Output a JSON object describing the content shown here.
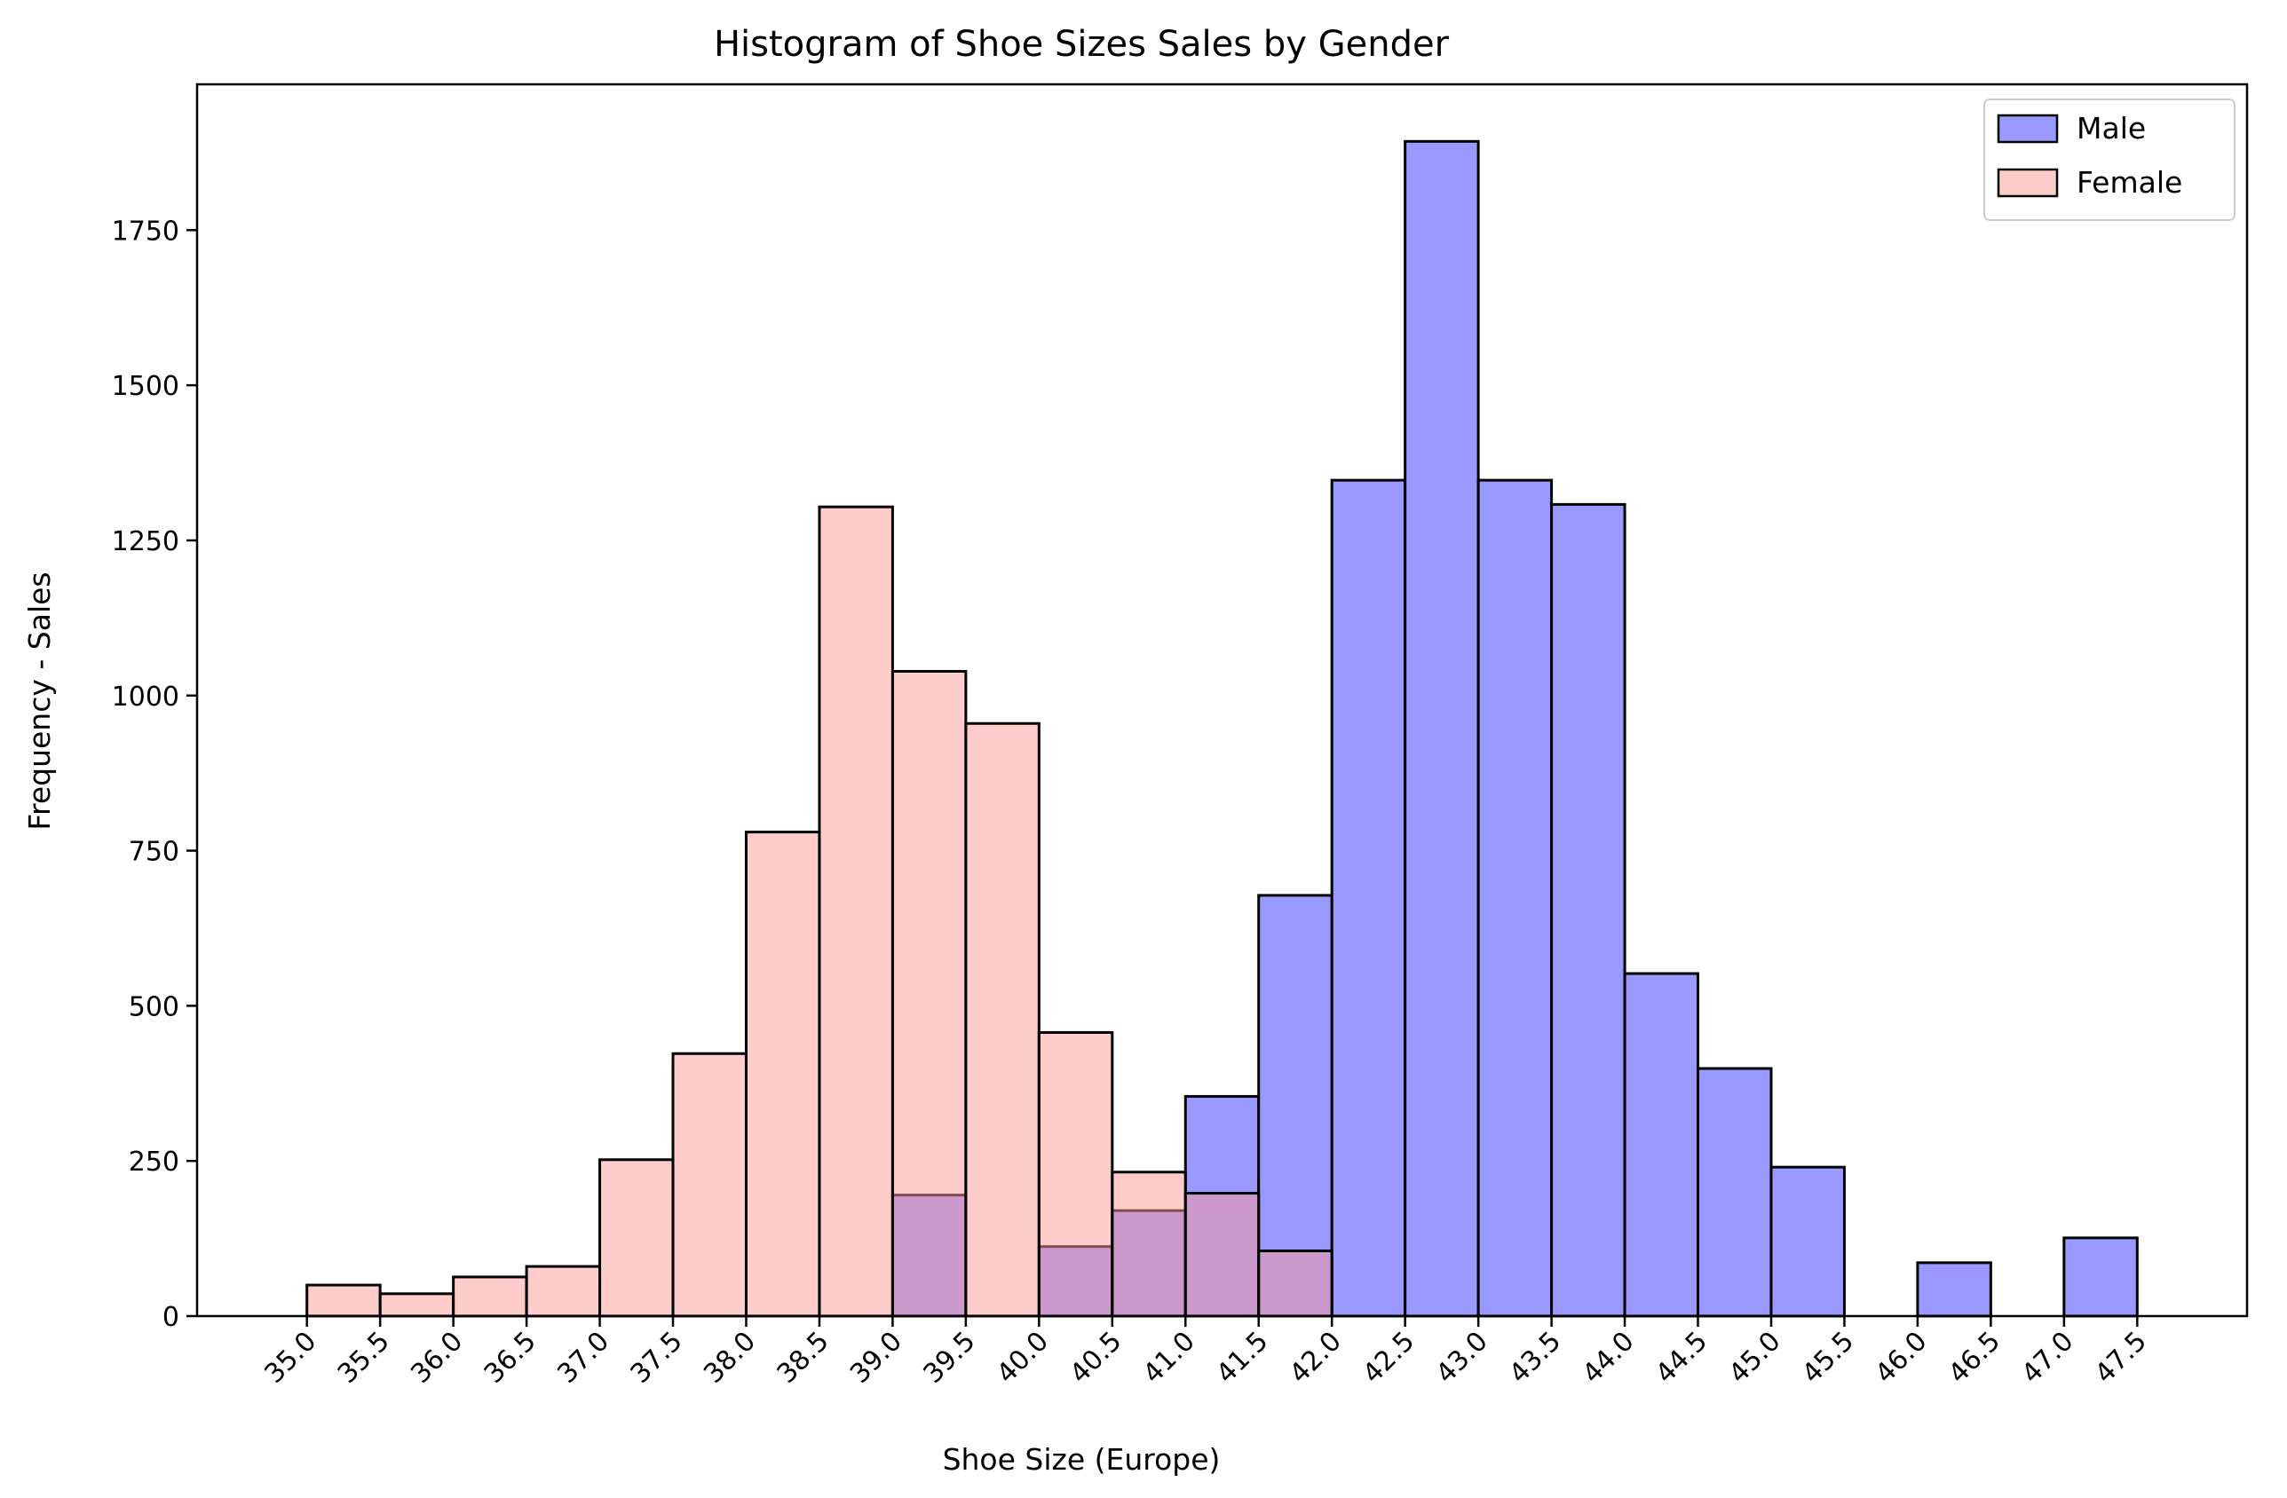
{
  "chart_data": {
    "type": "bar",
    "title": "Histogram of Shoe Sizes Sales by Gender",
    "xlabel": "Shoe Size (Europe)",
    "ylabel": "Frequency - Sales",
    "xlim": [
      34.25,
      48.25
    ],
    "ylim": [
      0,
      1985
    ],
    "xticks": [
      "35.0",
      "35.5",
      "36.0",
      "36.5",
      "37.0",
      "37.5",
      "38.0",
      "38.5",
      "39.0",
      "39.5",
      "40.0",
      "40.5",
      "41.0",
      "41.5",
      "42.0",
      "42.5",
      "43.0",
      "43.5",
      "44.0",
      "44.5",
      "45.0",
      "45.5",
      "46.0",
      "46.5",
      "47.0",
      "47.5"
    ],
    "yticks": [
      0,
      250,
      500,
      750,
      1000,
      1250,
      1500,
      1750
    ],
    "legend": {
      "position": "top-right"
    },
    "grid": false,
    "series": [
      {
        "name": "Male",
        "color": "#9999ff",
        "bins": [
          {
            "start": 39.0,
            "end": 39.5,
            "value": 195
          },
          {
            "start": 40.0,
            "end": 40.5,
            "value": 112
          },
          {
            "start": 40.5,
            "end": 41.0,
            "value": 170
          },
          {
            "start": 41.0,
            "end": 41.5,
            "value": 354
          },
          {
            "start": 41.5,
            "end": 42.0,
            "value": 678
          },
          {
            "start": 42.0,
            "end": 42.5,
            "value": 1347
          },
          {
            "start": 42.5,
            "end": 43.0,
            "value": 1893
          },
          {
            "start": 43.0,
            "end": 43.5,
            "value": 1347
          },
          {
            "start": 43.5,
            "end": 44.0,
            "value": 1308
          },
          {
            "start": 44.0,
            "end": 44.5,
            "value": 552
          },
          {
            "start": 44.5,
            "end": 45.0,
            "value": 399
          },
          {
            "start": 45.0,
            "end": 45.5,
            "value": 240
          },
          {
            "start": 45.5,
            "end": 46.0,
            "value": 0
          },
          {
            "start": 46.0,
            "end": 46.5,
            "value": 86
          },
          {
            "start": 46.5,
            "end": 47.0,
            "value": 0
          },
          {
            "start": 47.0,
            "end": 47.5,
            "value": 126
          }
        ]
      },
      {
        "name": "Female",
        "color": "#ff9999",
        "bins": [
          {
            "start": 35.0,
            "end": 35.5,
            "value": 50
          },
          {
            "start": 35.5,
            "end": 36.0,
            "value": 36
          },
          {
            "start": 36.0,
            "end": 36.5,
            "value": 63
          },
          {
            "start": 36.5,
            "end": 37.0,
            "value": 80
          },
          {
            "start": 37.0,
            "end": 37.5,
            "value": 252
          },
          {
            "start": 37.5,
            "end": 38.0,
            "value": 423
          },
          {
            "start": 38.0,
            "end": 38.5,
            "value": 780
          },
          {
            "start": 38.5,
            "end": 39.0,
            "value": 1304
          },
          {
            "start": 39.0,
            "end": 39.5,
            "value": 1039
          },
          {
            "start": 39.5,
            "end": 40.0,
            "value": 955
          },
          {
            "start": 40.0,
            "end": 40.5,
            "value": 457
          },
          {
            "start": 40.5,
            "end": 41.0,
            "value": 232
          },
          {
            "start": 41.0,
            "end": 41.5,
            "value": 198
          },
          {
            "start": 41.5,
            "end": 42.0,
            "value": 105
          }
        ]
      }
    ]
  }
}
